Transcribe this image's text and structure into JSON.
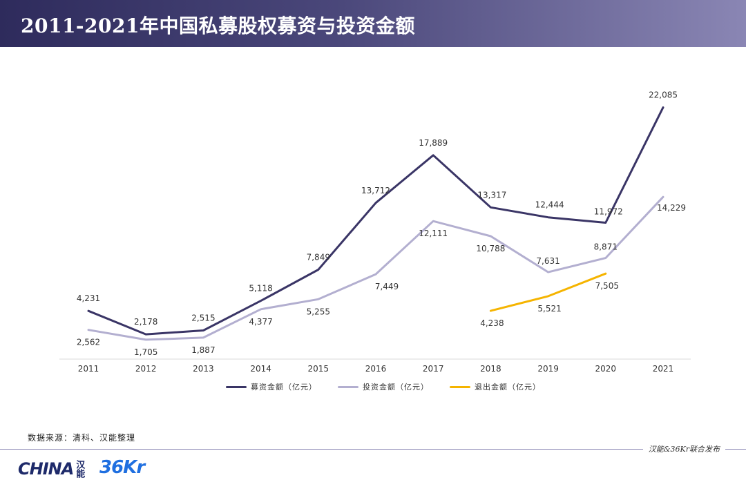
{
  "header": {
    "title": "2011-2021年中国私募股权募资与投资金额"
  },
  "chart_data": {
    "type": "line",
    "title": "",
    "xlabel": "",
    "ylabel": "",
    "x": [
      "2011",
      "2012",
      "2013",
      "2014",
      "2015",
      "2016",
      "2017",
      "2018",
      "2019",
      "2020",
      "2021"
    ],
    "ylim": [
      0,
      24000
    ],
    "grid": false,
    "legend_position": "bottom",
    "series": [
      {
        "name": "募资金额（亿元）",
        "color": "#3a3566",
        "values": [
          4231,
          2178,
          2515,
          5118,
          7849,
          13712,
          17889,
          13317,
          12444,
          11972,
          22085
        ],
        "labels": [
          "4,231",
          "2,178",
          "2,515",
          "5,118",
          "7,849",
          "13,712",
          "17,889",
          "13,317",
          "12,444",
          "11,972",
          "22,085"
        ]
      },
      {
        "name": "投资金额（亿元）",
        "color": "#b3afd0",
        "values": [
          2562,
          1705,
          1887,
          4377,
          5255,
          7449,
          12111,
          10788,
          7631,
          8871,
          14229
        ],
        "labels": [
          "2,562",
          "1,705",
          "1,887",
          "4,377",
          "5,255",
          "7,449",
          "12,111",
          "10,788",
          "7,631",
          "8,871",
          "14,229"
        ]
      },
      {
        "name": "退出金额（亿元）",
        "color": "#f5b400",
        "values": [
          null,
          null,
          null,
          null,
          null,
          null,
          null,
          4238,
          5521,
          7505,
          null
        ],
        "labels": [
          null,
          null,
          null,
          null,
          null,
          null,
          null,
          "4,238",
          "5,521",
          "7,505",
          null
        ]
      }
    ]
  },
  "source": "数据来源：清科、汉能整理",
  "footer": {
    "text": "汉能&36Kr联合发布"
  },
  "logos": {
    "china_text": "CHINA",
    "china_cn": "汉能",
    "kr_text": "36Kr"
  }
}
